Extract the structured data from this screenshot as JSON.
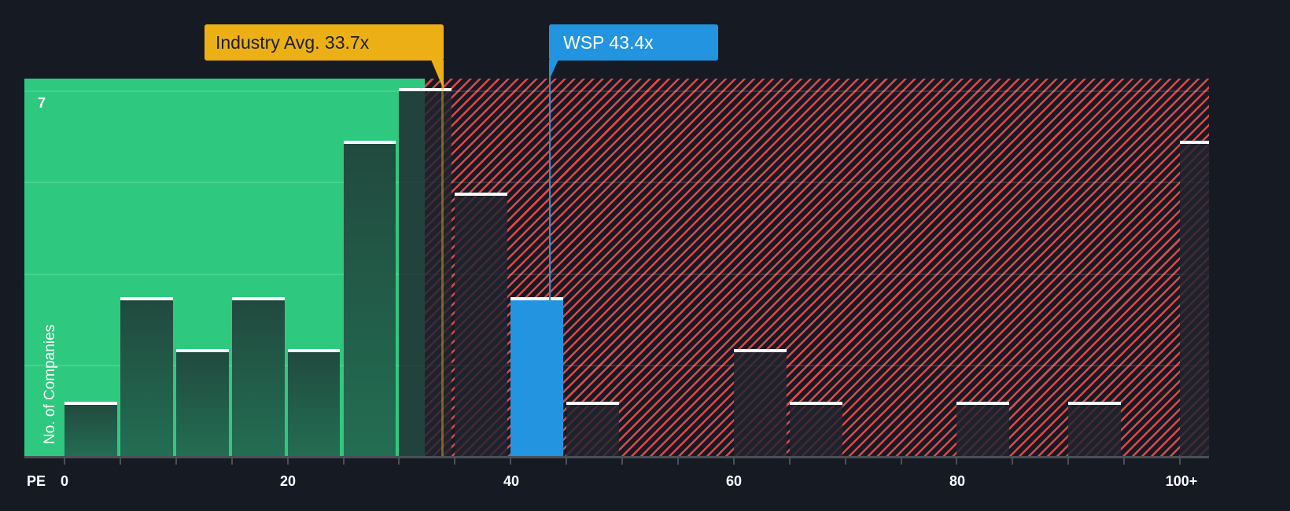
{
  "chart_data": {
    "type": "bar",
    "title": "",
    "xlabel": "PE",
    "ylabel": "No. of Companies",
    "x_ticks": [
      "0",
      "20",
      "40",
      "60",
      "80",
      "100+"
    ],
    "y_ticks": [
      "7"
    ],
    "ylim": [
      0,
      7
    ],
    "xlim": [
      0,
      105
    ],
    "bin_width": 5,
    "categories": [
      "0-5",
      "5-10",
      "10-15",
      "15-20",
      "20-25",
      "25-30",
      "30-35",
      "35-40",
      "40-45",
      "45-50",
      "50-55",
      "55-60",
      "60-65",
      "65-70",
      "70-75",
      "75-80",
      "80-85",
      "85-90",
      "90-95",
      "95-100",
      "100+"
    ],
    "values": [
      1,
      3,
      2,
      3,
      2,
      6,
      7,
      5,
      3,
      1,
      0,
      0,
      2,
      1,
      0,
      0,
      1,
      0,
      1,
      0,
      6
    ],
    "highlight_index": 8,
    "annotations": [
      {
        "label": "Industry Avg. 33.7x",
        "value": 33.7,
        "color": "#ecb016"
      },
      {
        "label": "WSP 43.4x",
        "value": 43.4,
        "color": "#2394e0"
      }
    ],
    "zones": [
      {
        "name": "below-average",
        "from": 0,
        "to": 32.5,
        "color": "#2ec97e"
      },
      {
        "name": "above-average",
        "from": 32.5,
        "to": 105,
        "color": "#e0474c",
        "pattern": "diagonal-hatch"
      }
    ],
    "grid": true,
    "legend": null
  },
  "labels": {
    "pe": "PE",
    "y_title": "No. of Companies",
    "y_max": "7",
    "industry_callout": "Industry Avg. 33.7x",
    "company_callout": "WSP 43.4x",
    "ticks": [
      "0",
      "20",
      "40",
      "60",
      "80",
      "100+"
    ]
  },
  "colors": {
    "background": "#161b23",
    "green_zone": "#2ec97e",
    "hatch_red": "#e0474c",
    "industry": "#ecb016",
    "company": "#2394e0",
    "bar_cap": "#ffffff"
  }
}
